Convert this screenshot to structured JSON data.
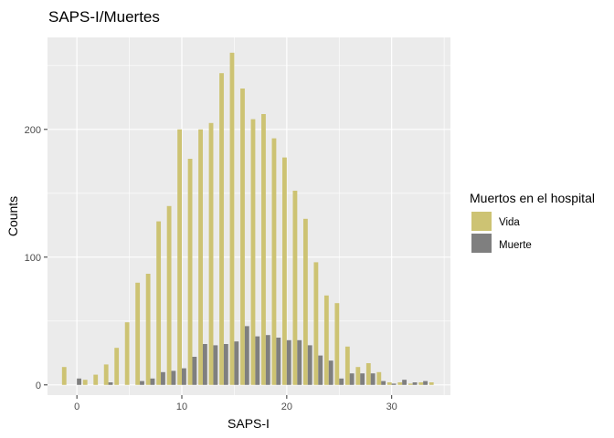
{
  "chart_data": {
    "type": "bar",
    "title": "SAPS-I/Muertes",
    "xlabel": "SAPS-I",
    "ylabel": "Counts",
    "xlim": [
      -2.8,
      35.6
    ],
    "ylim": [
      -8,
      272
    ],
    "x_ticks": [
      0,
      10,
      20,
      30
    ],
    "y_ticks": [
      0,
      100,
      200
    ],
    "x": [
      -1,
      0,
      1,
      2,
      3,
      4,
      5,
      6,
      7,
      8,
      9,
      10,
      11,
      12,
      13,
      14,
      15,
      16,
      17,
      18,
      19,
      20,
      21,
      22,
      23,
      24,
      25,
      26,
      27,
      28,
      29,
      30,
      31,
      32,
      33,
      34
    ],
    "legend": {
      "title": "Muertos en el hospital",
      "position": "right"
    },
    "grid": true,
    "panel_background": "#ebebeb",
    "series": [
      {
        "name": "Vida",
        "color": "#cdc373",
        "values": [
          14,
          0,
          4,
          8,
          16,
          29,
          49,
          80,
          87,
          128,
          140,
          200,
          177,
          200,
          205,
          244,
          260,
          232,
          208,
          212,
          193,
          178,
          152,
          130,
          96,
          70,
          64,
          30,
          14,
          17,
          10,
          2,
          2,
          1,
          2,
          2
        ]
      },
      {
        "name": "Muerte",
        "color": "#7f7f7f",
        "values": [
          0,
          5,
          0,
          0,
          2,
          0,
          0,
          3,
          5,
          10,
          11,
          13,
          22,
          32,
          31,
          32,
          34,
          46,
          38,
          39,
          37,
          35,
          35,
          31,
          23,
          19,
          5,
          9,
          9,
          9,
          3,
          1,
          4,
          2,
          3,
          0
        ]
      }
    ]
  }
}
